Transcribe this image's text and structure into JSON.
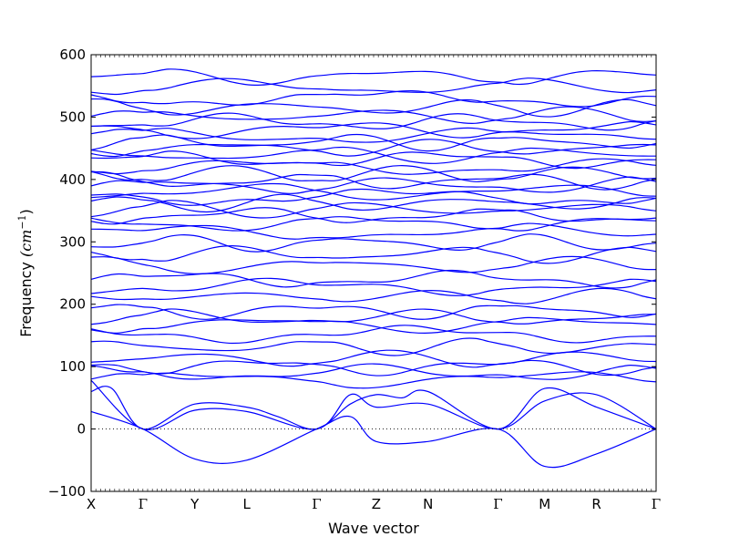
{
  "chart_data": {
    "type": "line",
    "title": "",
    "xlabel": "Wave vector",
    "ylabel_text": "Frequency ",
    "ylabel_unit": "(cm",
    "ylabel_exp": "−1",
    "ylabel_close": ")",
    "ylim": [
      -100,
      600
    ],
    "yticks": [
      -100,
      0,
      100,
      200,
      300,
      400,
      500,
      600
    ],
    "xticks": [
      {
        "label": "X",
        "pos": 0
      },
      {
        "label": "Γ",
        "pos": 1
      },
      {
        "label": "Y",
        "pos": 2
      },
      {
        "label": "L",
        "pos": 3
      },
      {
        "label": "Γ",
        "pos": 4.35
      },
      {
        "label": "Z",
        "pos": 5.5
      },
      {
        "label": "N",
        "pos": 6.5
      },
      {
        "label": "Γ",
        "pos": 7.85
      },
      {
        "label": "M",
        "pos": 8.75
      },
      {
        "label": "R",
        "pos": 9.75
      },
      {
        "label": "Γ",
        "pos": 10.9
      }
    ],
    "xlim": [
      0,
      10.9
    ],
    "zero_line": true,
    "line_color": "#0000ff",
    "acoustic_branches": [
      {
        "x": [
          0,
          1,
          2,
          3,
          4.35,
          5.0,
          5.5,
          6.5,
          7.85,
          8.75,
          9.75,
          10.9
        ],
        "y": [
          28,
          0,
          -48,
          -50,
          0,
          20,
          -20,
          -20,
          0,
          -60,
          -40,
          0
        ]
      },
      {
        "x": [
          0,
          0.4,
          1,
          2,
          3,
          3.6,
          4.35,
          5.0,
          5.5,
          6.0,
          6.5,
          7.85,
          8.75,
          9.75,
          10.9
        ],
        "y": [
          60,
          65,
          0,
          40,
          35,
          20,
          0,
          40,
          55,
          50,
          60,
          0,
          65,
          35,
          0
        ]
      },
      {
        "x": [
          0,
          1,
          2,
          3,
          4.35,
          5.0,
          5.5,
          6.5,
          7.85,
          8.75,
          9.75,
          10.9
        ],
        "y": [
          78,
          0,
          30,
          28,
          0,
          55,
          35,
          40,
          0,
          45,
          55,
          0
        ]
      }
    ],
    "optical_band_start": [
      80,
      90,
      100,
      112,
      132,
      152,
      168,
      178,
      190,
      212,
      228,
      240,
      262,
      280,
      298,
      315,
      330,
      342,
      352,
      362,
      372,
      380,
      390,
      398,
      408,
      420,
      432,
      440,
      450,
      460,
      470,
      480,
      492,
      502,
      515,
      530,
      548,
      565
    ],
    "optical_band_wiggle": 10
  }
}
